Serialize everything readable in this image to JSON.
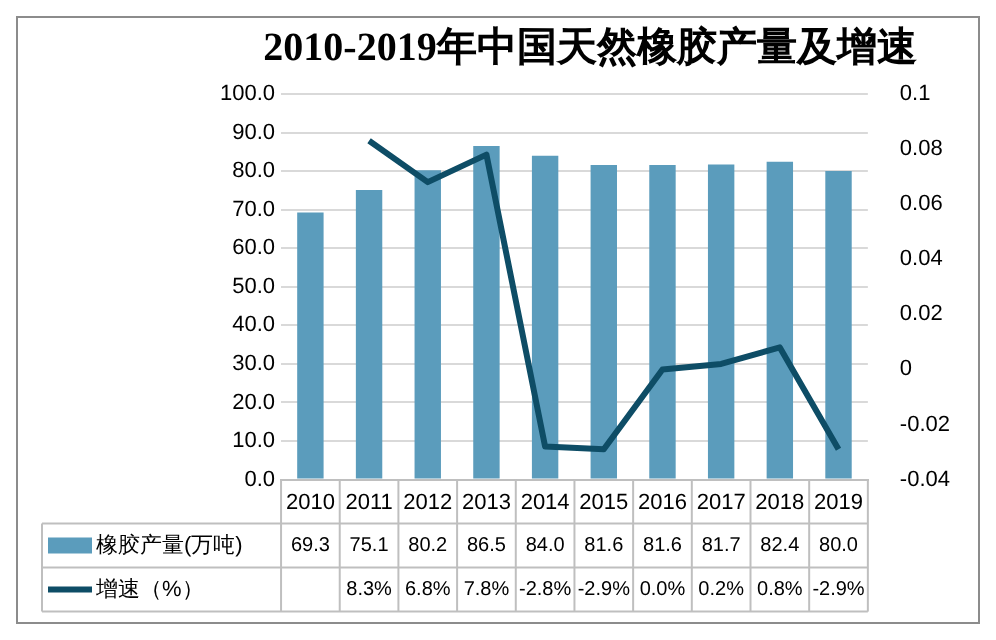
{
  "chart_data": {
    "type": "bar",
    "title": "2010-2019年中国天然橡胶产量及增速",
    "categories": [
      "2010",
      "2011",
      "2012",
      "2013",
      "2014",
      "2015",
      "2016",
      "2017",
      "2018",
      "2019"
    ],
    "series": [
      {
        "name": "橡胶产量(万吨)",
        "color": "#5b9cbc",
        "values": [
          69.3,
          75.1,
          80.2,
          86.5,
          84.0,
          81.6,
          81.6,
          81.7,
          82.4,
          80.0
        ],
        "value_labels": [
          "69.3",
          "75.1",
          "80.2",
          "86.5",
          "84.0",
          "81.6",
          "81.6",
          "81.7",
          "82.4",
          "80.0"
        ]
      },
      {
        "name": "增速（%）",
        "type": "line",
        "axis": "y2",
        "color": "#0e4d66",
        "values": [
          null,
          0.083,
          0.068,
          0.078,
          -0.028,
          -0.029,
          0.0,
          0.002,
          0.008,
          -0.029
        ],
        "value_labels": [
          null,
          "8.3%",
          "6.8%",
          "7.8%",
          "-2.8%",
          "-2.9%",
          "0.0%",
          "0.2%",
          "0.8%",
          "-2.9%"
        ]
      }
    ],
    "ylim": [
      0,
      100
    ],
    "yticks": [
      {
        "value": 0,
        "label": "0.0"
      },
      {
        "value": 10,
        "label": "10.0"
      },
      {
        "value": 20,
        "label": "20.0"
      },
      {
        "value": 30,
        "label": "30.0"
      },
      {
        "value": 40,
        "label": "40.0"
      },
      {
        "value": 50,
        "label": "50.0"
      },
      {
        "value": 60,
        "label": "60.0"
      },
      {
        "value": 70,
        "label": "70.0"
      },
      {
        "value": 80,
        "label": "80.0"
      },
      {
        "value": 90,
        "label": "90.0"
      },
      {
        "value": 100,
        "label": "100.0"
      }
    ],
    "y2lim": [
      -0.04,
      0.1
    ],
    "y2ticks": [
      -0.04,
      -0.02,
      0,
      0.02,
      0.04,
      0.06,
      0.08,
      0.1
    ],
    "grid": "y",
    "legend": "bottom",
    "marker": "none",
    "line_style": "solid"
  }
}
